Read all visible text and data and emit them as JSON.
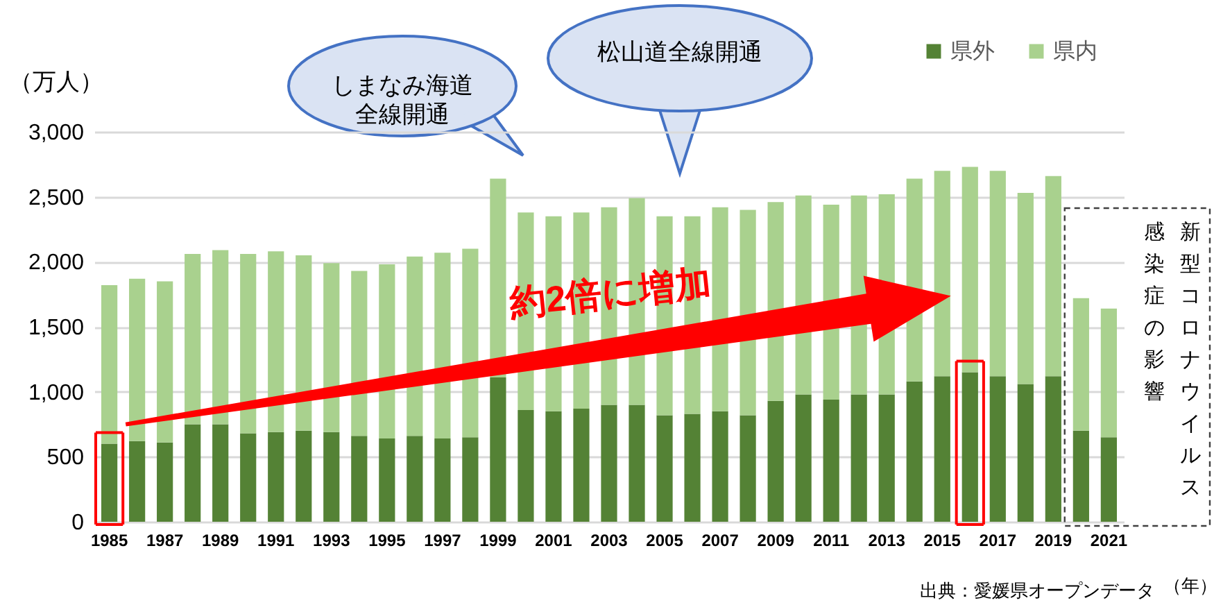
{
  "chart_data": {
    "type": "bar",
    "stacked": true,
    "categories": [
      "1985",
      null,
      "1987",
      null,
      "1989",
      null,
      "1991",
      null,
      "1993",
      null,
      "1995",
      null,
      "1997",
      null,
      "1999",
      null,
      "2001",
      null,
      "2003",
      null,
      "2005",
      null,
      "2007",
      null,
      "2009",
      null,
      "2011",
      null,
      "2013",
      null,
      "2015",
      null,
      "2017",
      null,
      "2019",
      null,
      "2021"
    ],
    "series": [
      {
        "name": "県外",
        "color": "#548235",
        "values": [
          600,
          620,
          610,
          750,
          750,
          680,
          690,
          700,
          690,
          660,
          640,
          660,
          640,
          650,
          1110,
          860,
          850,
          870,
          900,
          900,
          820,
          830,
          850,
          820,
          930,
          980,
          940,
          980,
          980,
          1080,
          1120,
          1150,
          1120,
          1060,
          1120,
          700,
          650
        ]
      },
      {
        "name": "県内",
        "color": "#a9d18e",
        "values": [
          1220,
          1250,
          1240,
          1310,
          1340,
          1380,
          1390,
          1350,
          1300,
          1270,
          1340,
          1380,
          1430,
          1450,
          1530,
          1520,
          1500,
          1510,
          1520,
          1590,
          1530,
          1520,
          1570,
          1580,
          1530,
          1530,
          1500,
          1530,
          1540,
          1560,
          1580,
          1580,
          1580,
          1470,
          1540,
          1020,
          990
        ]
      }
    ],
    "ylim": [
      0,
      3000
    ],
    "yticks": [
      0,
      500,
      {
        "value": 1000,
        "label": "1,000"
      },
      {
        "value": 1500,
        "label": "1,500"
      },
      {
        "value": 2000,
        "label": "2,000"
      },
      {
        "value": 2500,
        "label": "2,500"
      },
      {
        "value": 3000,
        "label": "3,000"
      }
    ],
    "ylabel": "（万人）",
    "xlabel": "（年）",
    "grid": "y",
    "legend": "top right",
    "annotations": [
      "しまなみ海道全線開通",
      "松山道全線開通",
      "約2倍に増加",
      "新型コロナウイルス",
      "感染症の影響",
      "出典：愛媛県オープンデータ"
    ]
  }
}
